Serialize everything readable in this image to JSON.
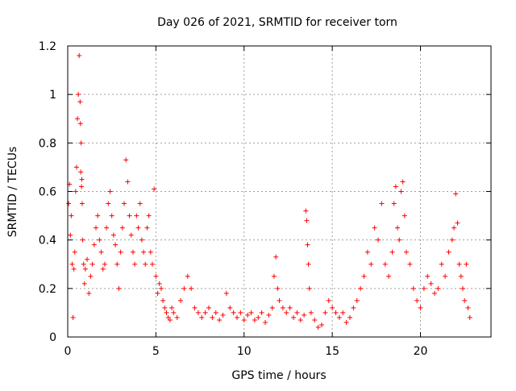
{
  "chart_data": {
    "type": "scatter",
    "title": "Day 026 of 2021, SRMTID for receiver torn",
    "xlabel": "GPS time / hours",
    "ylabel": "SRMTID / TECUs",
    "xlim": [
      0,
      24
    ],
    "ylim": [
      0,
      1.2
    ],
    "xticks": [
      0,
      5,
      10,
      15,
      20
    ],
    "xtick_labels": [
      "0",
      "5",
      "10",
      "15",
      "20"
    ],
    "yticks": [
      0,
      0.2,
      0.4,
      0.6,
      0.8,
      1.0,
      1.2
    ],
    "ytick_labels": [
      "0",
      "0.2",
      "0.4",
      "0.6",
      "0.8",
      "1",
      "1.2"
    ],
    "grid": true,
    "marker": "+",
    "color": "#ff0000",
    "series": [
      {
        "name": "SRMTID",
        "x": [
          0.05,
          0.1,
          0.15,
          0.2,
          0.25,
          0.3,
          0.35,
          0.4,
          0.45,
          0.5,
          0.55,
          0.6,
          0.65,
          0.7,
          0.72,
          0.74,
          0.76,
          0.78,
          0.8,
          0.82,
          0.85,
          0.9,
          0.95,
          1.0,
          1.1,
          1.2,
          1.3,
          1.4,
          1.5,
          1.6,
          1.7,
          1.8,
          1.9,
          2.0,
          2.1,
          2.2,
          2.3,
          2.4,
          2.5,
          2.6,
          2.7,
          2.8,
          2.9,
          3.0,
          3.1,
          3.2,
          3.3,
          3.4,
          3.5,
          3.6,
          3.7,
          3.8,
          3.9,
          4.0,
          4.1,
          4.2,
          4.3,
          4.4,
          4.5,
          4.6,
          4.7,
          4.8,
          4.9,
          5.0,
          5.1,
          5.2,
          5.3,
          5.4,
          5.5,
          5.6,
          5.7,
          5.8,
          5.9,
          6.0,
          6.2,
          6.4,
          6.6,
          6.8,
          7.0,
          7.2,
          7.4,
          7.6,
          7.8,
          8.0,
          8.2,
          8.4,
          8.6,
          8.8,
          9.0,
          9.2,
          9.4,
          9.6,
          9.8,
          10.0,
          10.2,
          10.4,
          10.6,
          10.8,
          11.0,
          11.2,
          11.4,
          11.6,
          11.7,
          11.8,
          11.9,
          12.0,
          12.2,
          12.4,
          12.6,
          12.8,
          13.0,
          13.2,
          13.4,
          13.5,
          13.55,
          13.6,
          13.65,
          13.7,
          13.8,
          14.0,
          14.2,
          14.4,
          14.6,
          14.8,
          15.0,
          15.2,
          15.4,
          15.6,
          15.8,
          16.0,
          16.2,
          16.4,
          16.6,
          16.8,
          17.0,
          17.2,
          17.4,
          17.6,
          17.8,
          18.0,
          18.2,
          18.4,
          18.5,
          18.6,
          18.7,
          18.8,
          18.9,
          19.0,
          19.1,
          19.2,
          19.4,
          19.6,
          19.8,
          20.0,
          20.2,
          20.4,
          20.6,
          20.8,
          21.0,
          21.2,
          21.4,
          21.6,
          21.8,
          21.9,
          22.0,
          22.1,
          22.2,
          22.3,
          22.4,
          22.5,
          22.6,
          22.7,
          22.8
        ],
        "y": [
          0.55,
          0.63,
          0.42,
          0.5,
          0.3,
          0.08,
          0.28,
          0.35,
          0.6,
          0.7,
          0.9,
          1.0,
          1.16,
          0.97,
          0.88,
          0.68,
          0.8,
          0.62,
          0.65,
          0.55,
          0.4,
          0.3,
          0.22,
          0.28,
          0.32,
          0.18,
          0.25,
          0.3,
          0.38,
          0.45,
          0.5,
          0.4,
          0.35,
          0.28,
          0.3,
          0.45,
          0.55,
          0.6,
          0.5,
          0.42,
          0.38,
          0.3,
          0.2,
          0.35,
          0.45,
          0.55,
          0.73,
          0.64,
          0.5,
          0.42,
          0.35,
          0.3,
          0.5,
          0.45,
          0.55,
          0.4,
          0.35,
          0.3,
          0.45,
          0.5,
          0.35,
          0.3,
          0.61,
          0.25,
          0.18,
          0.22,
          0.2,
          0.15,
          0.12,
          0.1,
          0.08,
          0.07,
          0.12,
          0.1,
          0.08,
          0.15,
          0.2,
          0.25,
          0.2,
          0.12,
          0.1,
          0.08,
          0.1,
          0.12,
          0.08,
          0.1,
          0.07,
          0.09,
          0.18,
          0.12,
          0.1,
          0.08,
          0.1,
          0.07,
          0.09,
          0.1,
          0.07,
          0.08,
          0.1,
          0.06,
          0.09,
          0.12,
          0.25,
          0.33,
          0.2,
          0.15,
          0.12,
          0.1,
          0.12,
          0.08,
          0.1,
          0.07,
          0.09,
          0.52,
          0.48,
          0.38,
          0.3,
          0.2,
          0.1,
          0.07,
          0.04,
          0.05,
          0.1,
          0.15,
          0.12,
          0.1,
          0.08,
          0.1,
          0.06,
          0.08,
          0.12,
          0.15,
          0.2,
          0.25,
          0.35,
          0.3,
          0.45,
          0.4,
          0.55,
          0.3,
          0.25,
          0.35,
          0.55,
          0.62,
          0.45,
          0.4,
          0.6,
          0.64,
          0.5,
          0.35,
          0.3,
          0.2,
          0.15,
          0.12,
          0.2,
          0.25,
          0.22,
          0.18,
          0.2,
          0.3,
          0.25,
          0.35,
          0.4,
          0.45,
          0.59,
          0.47,
          0.3,
          0.25,
          0.2,
          0.15,
          0.3,
          0.12,
          0.08
        ]
      }
    ]
  }
}
